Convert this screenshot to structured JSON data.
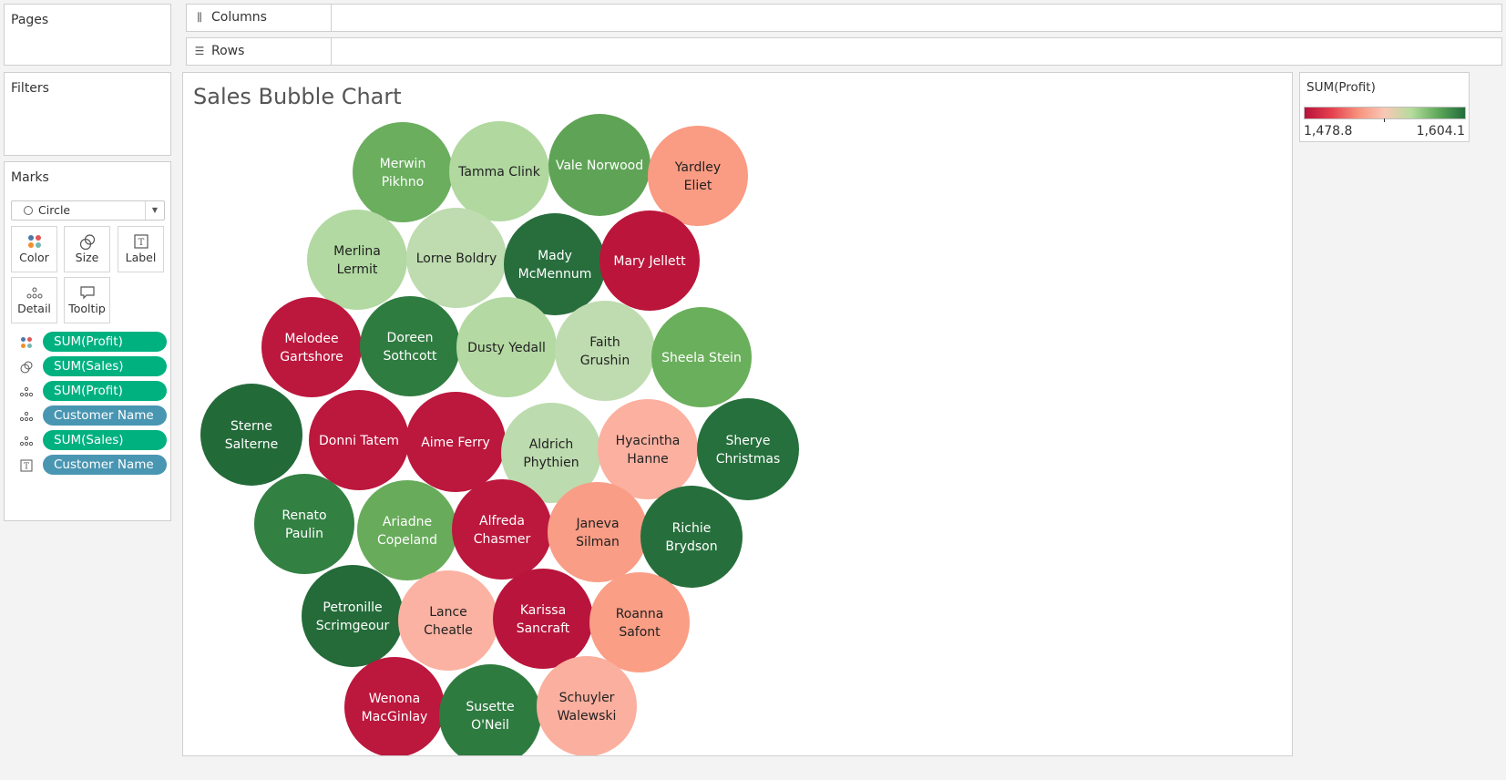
{
  "shelves": {
    "pages": {
      "label": "Pages"
    },
    "filters": {
      "label": "Filters"
    },
    "columns": {
      "label": "Columns",
      "icon": "columns-icon"
    },
    "rows": {
      "label": "Rows",
      "icon": "rows-icon"
    }
  },
  "marks": {
    "title": "Marks",
    "mark_type": "Circle",
    "buttons": {
      "color": "Color",
      "size": "Size",
      "label": "Label",
      "detail": "Detail",
      "tooltip": "Tooltip"
    },
    "pills": [
      {
        "text": "SUM(Profit)",
        "icon": "color-icon",
        "kind": "measure"
      },
      {
        "text": "SUM(Sales)",
        "icon": "size-icon",
        "kind": "measure"
      },
      {
        "text": "SUM(Profit)",
        "icon": "detail-icon",
        "kind": "measure"
      },
      {
        "text": "Customer Name",
        "icon": "detail-icon",
        "kind": "dimension"
      },
      {
        "text": "SUM(Sales)",
        "icon": "detail-icon",
        "kind": "measure"
      },
      {
        "text": "Customer Name",
        "icon": "label-icon",
        "kind": "dimension"
      }
    ]
  },
  "legend": {
    "title": "SUM(Profit)",
    "min_label": "1,478.8",
    "max_label": "1,604.1",
    "colors": [
      "#b8123a",
      "#e4404f",
      "#f7927c",
      "#f9c8b6",
      "#b4dc9c",
      "#5fa85a",
      "#226d3b"
    ]
  },
  "chart_data": {
    "type": "bubble",
    "title": "Sales Bubble Chart",
    "color_measure": "SUM(Profit)",
    "size_measure": "SUM(Sales)",
    "bubbles": [
      {
        "label": "Merwin Pikhno",
        "color": "#6aae5e"
      },
      {
        "label": "Tamma Clink",
        "color": "#b0d89f"
      },
      {
        "label": "Vale Norwood",
        "color": "#5fa356"
      },
      {
        "label": "Yardley Eliet",
        "color": "#fa9b83"
      },
      {
        "label": "Merlina Lermit",
        "color": "#b1d9a1"
      },
      {
        "label": "Lorne Boldry",
        "color": "#bedcaf"
      },
      {
        "label": "Mady McMennum",
        "color": "#286e3d"
      },
      {
        "label": "Mary Jellett",
        "color": "#bb153b"
      },
      {
        "label": "Melodee Gartshore",
        "color": "#bc173d"
      },
      {
        "label": "Doreen Sothcott",
        "color": "#2f7c40"
      },
      {
        "label": "Dusty Yedall",
        "color": "#b4d9a2"
      },
      {
        "label": "Faith Grushin",
        "color": "#bfdcb0"
      },
      {
        "label": "Sheela Stein",
        "color": "#6aaf5c"
      },
      {
        "label": "Sterne Salterne",
        "color": "#236a39"
      },
      {
        "label": "Donni Tatem",
        "color": "#bc173d"
      },
      {
        "label": "Aime Ferry",
        "color": "#bc173d"
      },
      {
        "label": "Aldrich Phythien",
        "color": "#bcdbae"
      },
      {
        "label": "Hyacintha Hanne",
        "color": "#fbb0a0"
      },
      {
        "label": "Sherye Christmas",
        "color": "#25703c"
      },
      {
        "label": "Renato Paulin",
        "color": "#328042"
      },
      {
        "label": "Ariadne Copeland",
        "color": "#68ac5b"
      },
      {
        "label": "Alfreda Chasmer",
        "color": "#bc173d"
      },
      {
        "label": "Janeva Silman",
        "color": "#f99d86"
      },
      {
        "label": "Richie Brydson",
        "color": "#266f3c"
      },
      {
        "label": "Petronille Scrimgeour",
        "color": "#246b39"
      },
      {
        "label": "Lance Cheatle",
        "color": "#fbb2a2"
      },
      {
        "label": "Karissa Sancraft",
        "color": "#b9143b"
      },
      {
        "label": "Roanna Safont",
        "color": "#fa9e86"
      },
      {
        "label": "Wenona MacGinlay",
        "color": "#bc173d"
      },
      {
        "label": "Susette O'Neil",
        "color": "#2e7b40"
      },
      {
        "label": "Schuyler Walewski",
        "color": "#fbaf9e"
      }
    ]
  }
}
